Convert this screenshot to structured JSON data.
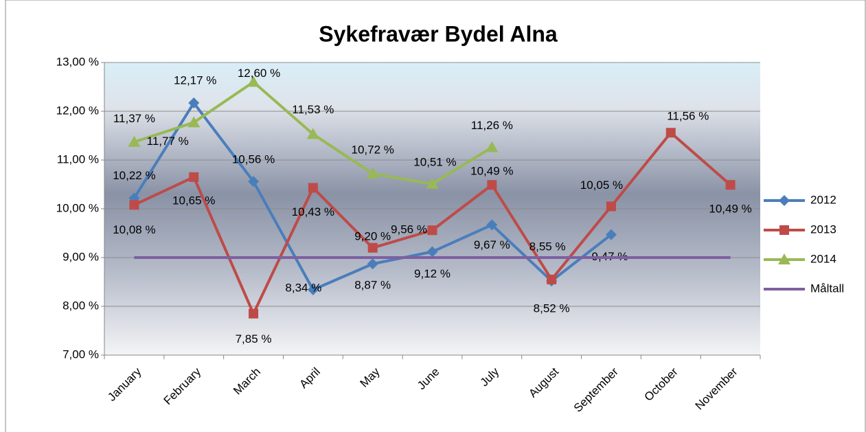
{
  "chart_data": {
    "type": "line",
    "title": "Sykefravær Bydel Alna",
    "categories": [
      "January",
      "February",
      "March",
      "April",
      "May",
      "June",
      "July",
      "August",
      "September",
      "October",
      "November"
    ],
    "series": [
      {
        "name": "2012",
        "color": "#4a7ebb",
        "marker": "diamond",
        "values": [
          10.22,
          12.17,
          10.56,
          8.34,
          8.87,
          9.12,
          9.67,
          8.52,
          9.47,
          null,
          null
        ],
        "value_labels": [
          "10,22 %",
          "12,17 %",
          "10,56 %",
          "8,34 %",
          "8,87 %",
          "9,12 %",
          "9,67 %",
          "8,52 %",
          "9,47 %",
          null,
          null
        ]
      },
      {
        "name": "2013",
        "color": "#be4b48",
        "marker": "square",
        "values": [
          10.08,
          10.65,
          7.85,
          10.43,
          9.2,
          9.56,
          10.49,
          8.55,
          10.05,
          11.56,
          10.49
        ],
        "value_labels": [
          "10,08 %",
          "10,65 %",
          "7,85 %",
          "10,43 %",
          "9,20 %",
          "9,56 %",
          "10,49 %",
          "8,55 %",
          "10,05 %",
          "11,56 %",
          "10,49 %"
        ]
      },
      {
        "name": "2014",
        "color": "#98b954",
        "marker": "triangle",
        "values": [
          11.37,
          11.77,
          12.6,
          11.53,
          10.72,
          10.51,
          11.26,
          null,
          null,
          null,
          null
        ],
        "value_labels": [
          "11,37 %",
          "11,77 %",
          "12,60 %",
          "11,53 %",
          "10,72 %",
          "10,51 %",
          "11,26 %",
          null,
          null,
          null,
          null
        ]
      },
      {
        "name": "Måltall",
        "color": "#7d60a0",
        "marker": "none",
        "values": [
          9,
          9,
          9,
          9,
          9,
          9,
          9,
          9,
          9,
          9,
          9
        ]
      }
    ],
    "ylim": [
      7,
      13
    ],
    "yticks": [
      {
        "value": 7,
        "label": "7,00 %"
      },
      {
        "value": 8,
        "label": "8,00 %"
      },
      {
        "value": 9,
        "label": "9,00 %"
      },
      {
        "value": 10,
        "label": "10,00 %"
      },
      {
        "value": 11,
        "label": "11,00 %"
      },
      {
        "value": 12,
        "label": "12,00 %"
      },
      {
        "value": 13,
        "label": "13,00 %"
      }
    ],
    "grid": true,
    "legend": "right"
  }
}
